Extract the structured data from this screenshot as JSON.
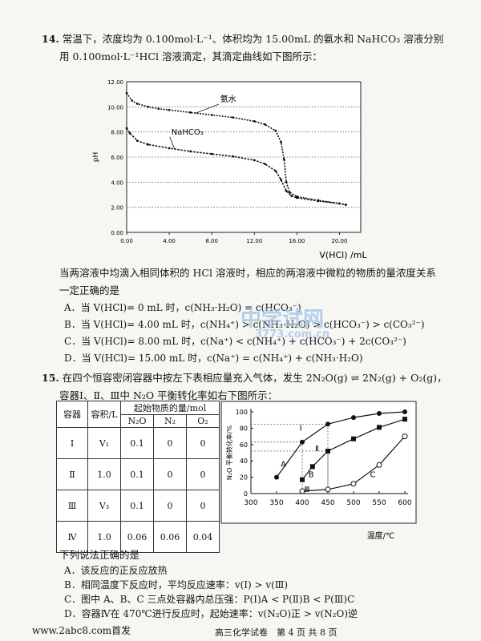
{
  "q14": {
    "number": "14.",
    "line1": "常温下，浓度均为 0.100mol·L⁻¹、体积均为 15.00mL 的氨水和 NaHCO₃ 溶液分别",
    "line2": "用 0.100mol·L⁻¹HCl 溶液滴定，其滴定曲线如下图所示：",
    "stem": "当两溶液中均滴入相同体积的 HCl 溶液时，相应的两溶液中微粒的物质的量浓度关系",
    "stem2": "一定正确的是",
    "options": [
      "A．当 V(HCl)= 0 mL 时，c(NH₃·H₂O) = c(HCO₃⁻)",
      "B．当 V(HCl)= 4.00 mL 时，c(NH₄⁺) > c(NH₃·H₂O) > c(HCO₃⁻) > c(CO₃²⁻)",
      "C．当 V(HCl)= 8.00 mL 时，c(Na⁺) < c(NH₄⁺) + c(HCO₃⁻) + 2c(CO₃²⁻)",
      "D．当 V(HCl)= 15.00 mL 时，c(Na⁺) = c(NH₄⁺) + c(NH₃·H₂O)"
    ]
  },
  "chart_data": [
    {
      "type": "line",
      "xlabel": "V(HCl) /mL",
      "ylabel": "pH",
      "xlim": [
        0,
        22
      ],
      "ylim": [
        0,
        12
      ],
      "x_ticks": [
        "0.00",
        "4.00",
        "8.00",
        "12.00",
        "16.00",
        "20.00"
      ],
      "y_ticks": [
        "0.00",
        "2.00",
        "4.00",
        "6.00",
        "8.00",
        "10.00",
        "12.00"
      ],
      "grid": "horizontal dotted",
      "series": [
        {
          "name": "氨水",
          "points": [
            [
              0,
              11.1
            ],
            [
              0.5,
              10.5
            ],
            [
              1,
              10.25
            ],
            [
              2,
              10.0
            ],
            [
              3,
              9.85
            ],
            [
              4,
              9.75
            ],
            [
              6,
              9.55
            ],
            [
              8,
              9.35
            ],
            [
              10,
              9.15
            ],
            [
              12,
              8.85
            ],
            [
              13,
              8.6
            ],
            [
              14,
              8.1
            ],
            [
              14.5,
              7.2
            ],
            [
              14.8,
              5.8
            ],
            [
              15,
              4.0
            ],
            [
              15.3,
              3.2
            ],
            [
              16,
              2.85
            ],
            [
              18,
              2.55
            ],
            [
              20,
              2.3
            ],
            [
              20.6,
              2.2
            ]
          ]
        },
        {
          "name": "NaHCO₃",
          "points": [
            [
              0,
              8.3
            ],
            [
              0.3,
              7.9
            ],
            [
              1,
              7.3
            ],
            [
              2,
              7.0
            ],
            [
              4,
              6.7
            ],
            [
              6,
              6.45
            ],
            [
              8,
              6.25
            ],
            [
              10,
              6.05
            ],
            [
              12,
              5.75
            ],
            [
              13,
              5.45
            ],
            [
              14,
              4.9
            ],
            [
              14.5,
              4.2
            ],
            [
              15,
              3.3
            ],
            [
              15.5,
              2.9
            ],
            [
              16,
              2.75
            ],
            [
              18,
              2.5
            ],
            [
              20,
              2.3
            ],
            [
              20.6,
              2.2
            ]
          ]
        }
      ]
    },
    {
      "type": "line",
      "xlabel": "温度/℃",
      "ylabel": "N₂O 平衡转化率/%",
      "xlim": [
        300,
        600
      ],
      "ylim": [
        0,
        100
      ],
      "x_ticks": [
        "300",
        "350",
        "400",
        "450",
        "500",
        "550",
        "600"
      ],
      "y_ticks": [
        "0",
        "20",
        "40",
        "60",
        "80",
        "100"
      ],
      "series": [
        {
          "name": "Ⅰ",
          "marker": "filled-circle",
          "points": [
            [
              350,
              20
            ],
            [
              400,
              63
            ],
            [
              450,
              85
            ],
            [
              500,
              93
            ],
            [
              550,
              98
            ],
            [
              600,
              100
            ]
          ]
        },
        {
          "name": "Ⅱ",
          "marker": "filled-square",
          "points": [
            [
              400,
              17
            ],
            [
              420,
              33
            ],
            [
              450,
              52
            ],
            [
              500,
              67
            ],
            [
              550,
              81
            ],
            [
              600,
              91
            ]
          ]
        },
        {
          "name": "Ⅲ",
          "marker": "open-circle",
          "points": [
            [
              400,
              3
            ],
            [
              450,
              5
            ],
            [
              500,
              12
            ],
            [
              550,
              35
            ],
            [
              600,
              70
            ]
          ]
        }
      ],
      "point_labels": [
        "A",
        "B",
        "C"
      ]
    }
  ],
  "q15": {
    "number": "15.",
    "line1": "在四个恒容密闭容器中按左下表相应量充入气体，发生 2N₂O(g) ⇌ 2N₂(g) + O₂(g)，",
    "line2": "容器Ⅰ、Ⅱ、Ⅲ中 N₂O 平衡转化率如右下图所示：",
    "table": {
      "col_container": "容器",
      "col_volume": "容积/L",
      "col_group": "起始物质的量/mol",
      "col_n2o": "N₂O",
      "col_n2": "N₂",
      "col_o2": "O₂",
      "rows": [
        [
          "Ⅰ",
          "V₁",
          "0.1",
          "0",
          "0"
        ],
        [
          "Ⅱ",
          "1.0",
          "0.1",
          "0",
          "0"
        ],
        [
          "Ⅲ",
          "V₃",
          "0.1",
          "0",
          "0"
        ],
        [
          "Ⅳ",
          "1.0",
          "0.06",
          "0.06",
          "0.04"
        ]
      ]
    },
    "stem": "下列说法正确的是",
    "options": [
      "A．该反应的正反应放热",
      "B．相同温度下反应时，平均反应速率：v(Ⅰ) > v(Ⅲ)",
      "C．图中 A、B、C 三点处容器内总压强：P(Ⅰ)A < P(Ⅱ)B < P(Ⅲ)C",
      "D．容器Ⅳ在 470℃进行反应时，起始速率：v(N₂O)正 > v(N₂O)逆"
    ]
  },
  "footer": {
    "source": "www.2abc8.com首发",
    "center": "高三化学试卷　第 4 页 共 8 页"
  },
  "watermark": {
    "line1": "中学试网",
    "line2": "3773.com.cn"
  }
}
